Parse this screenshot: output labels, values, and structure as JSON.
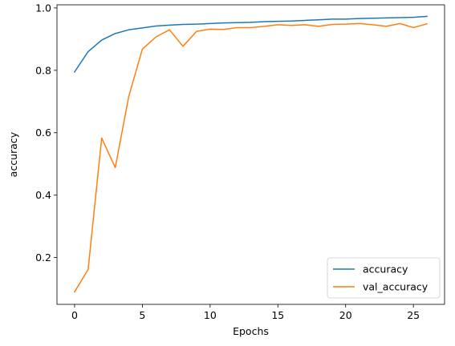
{
  "chart_data": {
    "type": "line",
    "title": "",
    "xlabel": "Epochs",
    "ylabel": "accuracy",
    "xlim": [
      -1.3,
      27.3
    ],
    "ylim": [
      0.05,
      1.01
    ],
    "xticks": [
      0,
      5,
      10,
      15,
      20,
      25
    ],
    "yticks": [
      0.2,
      0.4,
      0.6,
      0.8,
      1.0
    ],
    "xtick_labels": [
      "0",
      "5",
      "10",
      "15",
      "20",
      "25"
    ],
    "ytick_labels": [
      "0.2",
      "0.4",
      "0.6",
      "0.8",
      "1.0"
    ],
    "grid": false,
    "legend_position": "lower-right",
    "x": [
      0,
      1,
      2,
      3,
      4,
      5,
      6,
      7,
      8,
      9,
      10,
      11,
      12,
      13,
      14,
      15,
      16,
      17,
      18,
      19,
      20,
      21,
      22,
      23,
      24,
      25,
      26
    ],
    "series": [
      {
        "name": "accuracy",
        "color": "#1f77b4",
        "values": [
          0.795,
          0.86,
          0.897,
          0.918,
          0.93,
          0.936,
          0.942,
          0.945,
          0.947,
          0.948,
          0.95,
          0.952,
          0.953,
          0.954,
          0.956,
          0.957,
          0.958,
          0.96,
          0.962,
          0.964,
          0.964,
          0.966,
          0.967,
          0.968,
          0.969,
          0.97,
          0.973
        ]
      },
      {
        "name": "val_accuracy",
        "color": "#ff7f0e",
        "values": [
          0.09,
          0.162,
          0.583,
          0.488,
          0.717,
          0.868,
          0.907,
          0.93,
          0.877,
          0.925,
          0.932,
          0.931,
          0.937,
          0.937,
          0.941,
          0.946,
          0.944,
          0.946,
          0.941,
          0.947,
          0.948,
          0.95,
          0.946,
          0.941,
          0.95,
          0.937,
          0.949
        ]
      }
    ]
  }
}
